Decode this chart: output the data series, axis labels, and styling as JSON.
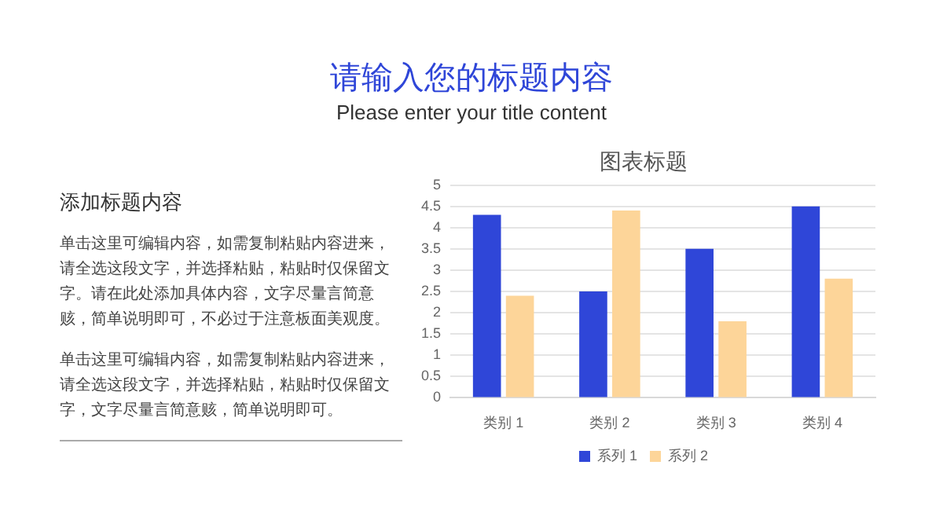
{
  "chart_data": {
    "type": "bar",
    "title": "图表标题",
    "annotations": [
      "请输入您的标题内容",
      "Please enter your title content",
      "添加标题内容",
      "单击这里可编辑内容，如需复制粘贴内容进来，请全选这段文字，并选择粘贴，粘贴时仅保留文字。请在此处添加具体内容，文字尽量言简意赅，简单说明即可，不必过于注意板面美观度。",
      "单击这里可编辑内容，如需复制粘贴内容进来，请全选这段文字，并选择粘贴，粘贴时仅保留文字，文字尽量言简意赅，简单说明即可。"
    ],
    "categories": [
      "类别 1",
      "类别 2",
      "类别 3",
      "类别 4"
    ],
    "series": [
      {
        "name": "系列 1",
        "color": "#2f46d8",
        "values": [
          4.3,
          2.5,
          3.5,
          4.5
        ]
      },
      {
        "name": "系列 2",
        "color": "#fdd599",
        "values": [
          2.4,
          4.4,
          1.8,
          2.8
        ]
      }
    ],
    "ylim": [
      0,
      5
    ],
    "yticks": [
      0,
      0.5,
      1,
      1.5,
      2,
      2.5,
      3,
      3.5,
      4,
      4.5,
      5
    ],
    "grid": "y",
    "legend": "bottom"
  }
}
